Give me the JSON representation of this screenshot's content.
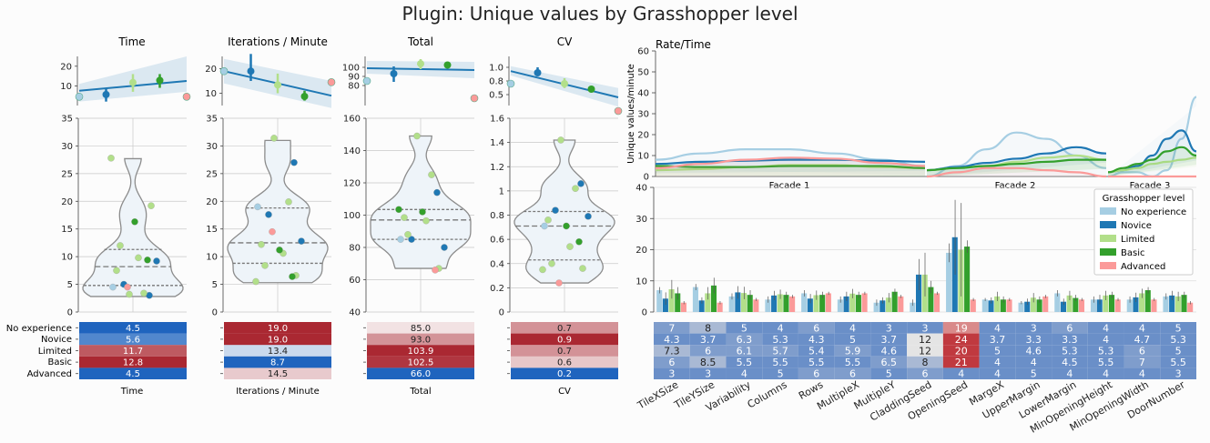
{
  "title": "Plugin: Unique values by Grasshopper level",
  "colors": {
    "No experience": "#a6cee3",
    "Novice": "#1f78b4",
    "Limited": "#b2df8a",
    "Basic": "#33a02c",
    "Advanced": "#fb9a99"
  },
  "chart_data": [
    {
      "type": "scatter",
      "id": "time",
      "title": "Time",
      "xlabel": "Time",
      "levels": [
        "No experience",
        "Novice",
        "Limited",
        "Basic",
        "Advanced"
      ],
      "regression": {
        "ylim": [
          0,
          25
        ],
        "yticks": [
          10,
          20
        ],
        "means": [
          4.5,
          5.6,
          11.7,
          12.8,
          4.5
        ],
        "ci": [
          [
            4.5,
            4.5
          ],
          [
            2,
            9
          ],
          [
            7,
            16
          ],
          [
            9,
            16
          ],
          [
            4.5,
            4.5
          ]
        ],
        "fit": [
          7.5,
          12.5
        ],
        "band": [
          [
            2,
            11
          ],
          [
            7,
            25
          ]
        ]
      },
      "violin": {
        "ylim": [
          0,
          35
        ],
        "yticks": [
          0,
          5,
          10,
          15,
          20,
          25,
          30,
          35
        ],
        "points": [
          {
            "g": 0,
            "v": 4.5
          },
          {
            "g": 1,
            "v": 3
          },
          {
            "g": 1,
            "v": 5
          },
          {
            "g": 1,
            "v": 9.2
          },
          {
            "g": 2,
            "v": 3.2
          },
          {
            "g": 2,
            "v": 3.4
          },
          {
            "g": 2,
            "v": 7.5
          },
          {
            "g": 2,
            "v": 9.8
          },
          {
            "g": 2,
            "v": 12
          },
          {
            "g": 2,
            "v": 19.2
          },
          {
            "g": 2,
            "v": 27.8
          },
          {
            "g": 3,
            "v": 16.3
          },
          {
            "g": 3,
            "v": 9.4
          },
          {
            "g": 4,
            "v": 4.5
          }
        ],
        "range": [
          2.8,
          27.7
        ],
        "median": 8.2,
        "q1": 4.8,
        "q3": 11.3
      },
      "table": {
        "values": [
          4.5,
          5.6,
          11.7,
          12.8,
          4.5
        ],
        "labels": [
          "4.5",
          "5.6",
          "11.7",
          "12.8",
          "4.5"
        ]
      }
    },
    {
      "type": "scatter",
      "id": "ipm",
      "title": "Iterations / Minute",
      "xlabel": "Iterations / Minute",
      "levels": [
        "No experience",
        "Novice",
        "Limited",
        "Basic",
        "Advanced"
      ],
      "regression": {
        "ylim": [
          5,
          25
        ],
        "yticks": [
          10,
          20
        ],
        "means": [
          19,
          19,
          13.4,
          8.7,
          14.5
        ],
        "ci": [
          [
            19,
            19
          ],
          [
            15,
            26
          ],
          [
            10,
            18
          ],
          [
            7,
            11
          ],
          [
            14.5,
            14.5
          ]
        ],
        "fit": [
          19,
          9
        ],
        "band": [
          [
            14,
            24
          ],
          [
            4,
            15
          ]
        ]
      },
      "violin": {
        "ylim": [
          0,
          35
        ],
        "yticks": [
          0,
          5,
          10,
          15,
          20,
          25,
          30,
          35
        ],
        "points": [
          {
            "g": 0,
            "v": 19
          },
          {
            "g": 1,
            "v": 27
          },
          {
            "g": 1,
            "v": 17.6
          },
          {
            "g": 1,
            "v": 12.8
          },
          {
            "g": 2,
            "v": 31.4
          },
          {
            "g": 2,
            "v": 19.9
          },
          {
            "g": 2,
            "v": 12.2
          },
          {
            "g": 2,
            "v": 10.6
          },
          {
            "g": 2,
            "v": 8.4
          },
          {
            "g": 2,
            "v": 6.6
          },
          {
            "g": 2,
            "v": 5.5
          },
          {
            "g": 3,
            "v": 11.2
          },
          {
            "g": 3,
            "v": 6.4
          },
          {
            "g": 4,
            "v": 14.5
          }
        ],
        "range": [
          5.3,
          31
        ],
        "median": 12.5,
        "q1": 8.8,
        "q3": 18.8
      },
      "table": {
        "values": [
          19,
          19,
          13.4,
          8.7,
          14.5
        ],
        "labels": [
          "19.0",
          "19.0",
          "13.4",
          "8.7",
          "14.5"
        ]
      }
    },
    {
      "type": "scatter",
      "id": "total",
      "title": "Total",
      "xlabel": "Total",
      "levels": [
        "No experience",
        "Novice",
        "Limited",
        "Basic",
        "Advanced"
      ],
      "regression": {
        "ylim": [
          58,
          112
        ],
        "yticks": [
          80,
          90,
          100
        ],
        "means": [
          85,
          93,
          103.9,
          102.5,
          66
        ],
        "ci": [
          [
            85,
            85
          ],
          [
            84,
            101
          ],
          [
            98,
            109
          ],
          [
            101,
            104
          ],
          [
            66,
            66
          ]
        ],
        "fit": [
          99,
          97
        ],
        "band": [
          [
            93,
            107
          ],
          [
            88,
            106
          ]
        ]
      },
      "violin": {
        "ylim": [
          40,
          160
        ],
        "yticks": [
          40,
          60,
          80,
          100,
          120,
          140,
          160
        ],
        "points": [
          {
            "g": 0,
            "v": 85
          },
          {
            "g": 1,
            "v": 114
          },
          {
            "g": 1,
            "v": 85
          },
          {
            "g": 1,
            "v": 80
          },
          {
            "g": 2,
            "v": 149
          },
          {
            "g": 2,
            "v": 125
          },
          {
            "g": 2,
            "v": 98.5
          },
          {
            "g": 2,
            "v": 96.5
          },
          {
            "g": 2,
            "v": 88
          },
          {
            "g": 2,
            "v": 67
          },
          {
            "g": 3,
            "v": 103.5
          },
          {
            "g": 3,
            "v": 102
          },
          {
            "g": 4,
            "v": 66
          }
        ],
        "range": [
          67,
          149
        ],
        "median": 97,
        "q1": 85,
        "q3": 103.5
      },
      "table": {
        "values": [
          85,
          93,
          103.9,
          102.5,
          66
        ],
        "labels": [
          "85.0",
          "93.0",
          "103.9",
          "102.5",
          "66.0"
        ]
      }
    },
    {
      "type": "scatter",
      "id": "cv",
      "title": "CV",
      "xlabel": "CV",
      "levels": [
        "No experience",
        "Novice",
        "Limited",
        "Basic",
        "Advanced"
      ],
      "regression": {
        "ylim": [
          0.3,
          1.2
        ],
        "yticks": [
          0.5,
          0.75,
          1.0
        ],
        "yticklabels": [
          "0.5",
          "0.8",
          "1.0"
        ],
        "means": [
          0.7,
          0.9,
          0.7,
          0.6,
          0.2
        ],
        "ci": [
          [
            0.7,
            0.7
          ],
          [
            0.84,
            1.0
          ],
          [
            0.62,
            0.8
          ],
          [
            0.63,
            0.65
          ],
          [
            0.22,
            0.22
          ]
        ],
        "fit": [
          0.93,
          0.45
        ],
        "band": [
          [
            0.85,
            1.02
          ],
          [
            0.28,
            0.62
          ]
        ]
      },
      "violin": {
        "ylim": [
          0,
          1.6
        ],
        "yticks": [
          0,
          0.2,
          0.4,
          0.6,
          0.8,
          1.0,
          1.2,
          1.4,
          1.6
        ],
        "points": [
          {
            "g": 0,
            "v": 0.71
          },
          {
            "g": 1,
            "v": 1.06
          },
          {
            "g": 1,
            "v": 0.84
          },
          {
            "g": 1,
            "v": 0.79
          },
          {
            "g": 2,
            "v": 1.42
          },
          {
            "g": 2,
            "v": 1.02
          },
          {
            "g": 2,
            "v": 0.76
          },
          {
            "g": 2,
            "v": 0.54
          },
          {
            "g": 2,
            "v": 0.4
          },
          {
            "g": 2,
            "v": 0.36
          },
          {
            "g": 2,
            "v": 0.35
          },
          {
            "g": 3,
            "v": 0.71
          },
          {
            "g": 3,
            "v": 0.58
          },
          {
            "g": 4,
            "v": 0.24
          }
        ],
        "range": [
          0.24,
          1.42
        ],
        "median": 0.71,
        "q1": 0.43,
        "q3": 0.83
      },
      "table": {
        "values": [
          0.7,
          0.9,
          0.7,
          0.6,
          0.2
        ],
        "labels": [
          "0.7",
          "0.9",
          "0.7",
          "0.6",
          "0.2"
        ]
      }
    },
    {
      "type": "line",
      "id": "rate",
      "title": "Rate/Time",
      "ylabel": "Unique values/minute",
      "ylim": [
        0,
        60
      ],
      "yticks": [
        0,
        10,
        20,
        30,
        40,
        50,
        60
      ],
      "facets": [
        "Facade 1",
        "Facade 2",
        "Facade 3"
      ],
      "series": [
        {
          "name": "No experience",
          "facets": [
            [
              8,
              11,
              13,
              13,
              11,
              8,
              5
            ],
            [
              0,
              5,
              13,
              21,
              18,
              10,
              4
            ],
            [
              0,
              2,
              2,
              0,
              3,
              18,
              38
            ]
          ]
        },
        {
          "name": "Novice",
          "facets": [
            [
              6,
              7,
              7.5,
              8,
              8,
              7.5,
              7
            ],
            [
              3,
              4.5,
              6.5,
              8.5,
              11,
              14,
              11
            ],
            [
              2,
              3,
              5,
              10,
              18,
              22,
              12
            ]
          ]
        },
        {
          "name": "Limited",
          "facets": [
            [
              3,
              3.5,
              4.5,
              5.5,
              5.5,
              4.5,
              4
            ],
            [
              3,
              4,
              5,
              7,
              9,
              10,
              8
            ],
            [
              2,
              3,
              4,
              6,
              7,
              8,
              9
            ]
          ]
        },
        {
          "name": "Basic",
          "facets": [
            [
              5,
              4.5,
              4.5,
              5,
              5,
              5,
              4
            ],
            [
              3,
              4,
              5,
              6,
              7,
              8,
              8
            ],
            [
              2,
              4,
              6,
              8,
              12,
              14,
              10
            ]
          ]
        },
        {
          "name": "Advanced",
          "facets": [
            [
              4,
              6,
              8,
              9,
              8.5,
              6.5,
              5
            ],
            [
              0,
              2,
              4,
              4,
              3,
              2,
              0
            ],
            [
              0,
              0,
              0,
              0,
              0,
              0,
              0
            ]
          ]
        }
      ]
    },
    {
      "type": "bar",
      "id": "params",
      "ylim": [
        0,
        40
      ],
      "yticks": [
        0,
        10,
        20,
        30,
        40
      ],
      "legend_title": "Grasshopper level",
      "legend_position": "top-right",
      "categories": [
        "TileXSize",
        "TileYSize",
        "Variability",
        "Columns",
        "Rows",
        "MultipleX",
        "MultipleY",
        "CladdingSeed",
        "OpeningSeed",
        "MargeX",
        "UpperMargin",
        "LowerMargin",
        "MinOpeningHeight",
        "MinOpeningWidth",
        "DoorNumber"
      ],
      "series": [
        {
          "name": "No experience",
          "values": [
            7,
            8,
            5,
            4,
            6,
            4,
            3,
            3,
            19,
            4,
            3,
            6,
            4,
            4,
            5
          ],
          "labels": [
            "7",
            "8",
            "5",
            "4",
            "6",
            "4",
            "3",
            "3",
            "19",
            "4",
            "3",
            "6",
            "4",
            "4",
            "5"
          ]
        },
        {
          "name": "Novice",
          "values": [
            4.3,
            3.7,
            6.3,
            5.3,
            4.3,
            5,
            3.7,
            12,
            24,
            3.7,
            3.3,
            3.3,
            4,
            4.7,
            5.3
          ],
          "labels": [
            "4.3",
            "3.7",
            "6.3",
            "5.3",
            "4.3",
            "5",
            "3.7",
            "12",
            "24",
            "3.7",
            "3.3",
            "3.3",
            "4",
            "4.7",
            "5.3"
          ]
        },
        {
          "name": "Limited",
          "values": [
            7.3,
            6,
            6.1,
            5.7,
            5.4,
            5.9,
            4.6,
            12,
            20,
            5,
            4.6,
            5.3,
            5.3,
            6,
            5
          ],
          "labels": [
            "7.3",
            "6",
            "6.1",
            "5.7",
            "5.4",
            "5.9",
            "4.6",
            "12",
            "20",
            "5",
            "4.6",
            "5.3",
            "5.3",
            "6",
            "5"
          ]
        },
        {
          "name": "Basic",
          "values": [
            6,
            8.5,
            5.5,
            5.5,
            5.5,
            5.5,
            6.5,
            8,
            21,
            4,
            4,
            4.5,
            5.5,
            7,
            5.5
          ],
          "labels": [
            "6",
            "8.5",
            "5.5",
            "5.5",
            "5.5",
            "5.5",
            "6.5",
            "8",
            "21",
            "4",
            "4",
            "4.5",
            "5.5",
            "7",
            "5.5"
          ]
        },
        {
          "name": "Advanced",
          "values": [
            3,
            3,
            4,
            5,
            6,
            6,
            5,
            6,
            4,
            4,
            5,
            4,
            4,
            4,
            3
          ],
          "labels": [
            "3",
            "3",
            "4",
            "5",
            "6",
            "6",
            "5",
            "6",
            "4",
            "4",
            "5",
            "4",
            "4",
            "4",
            "3"
          ]
        }
      ],
      "errors": [
        [
          1,
          1,
          1,
          1,
          1,
          1,
          1,
          1,
          3,
          0.5,
          0.5,
          1,
          1,
          1,
          1
        ],
        [
          2,
          1,
          2,
          1.5,
          1.5,
          1.5,
          1,
          5,
          12,
          1,
          1,
          1,
          1.5,
          1.5,
          1.5
        ],
        [
          3,
          2,
          2,
          1.5,
          1.5,
          1.5,
          1.5,
          7,
          15,
          1.5,
          1.5,
          1.5,
          1.5,
          1.5,
          1.5
        ],
        [
          2,
          2.5,
          1.5,
          1,
          1,
          1,
          1,
          2,
          2,
          1,
          1,
          1,
          1,
          1,
          1
        ],
        [
          0.5,
          0.5,
          0.5,
          0.5,
          0.5,
          0.5,
          0.5,
          0.5,
          0.5,
          0.5,
          0.5,
          0.5,
          0.5,
          0.5,
          0.5
        ]
      ]
    }
  ]
}
